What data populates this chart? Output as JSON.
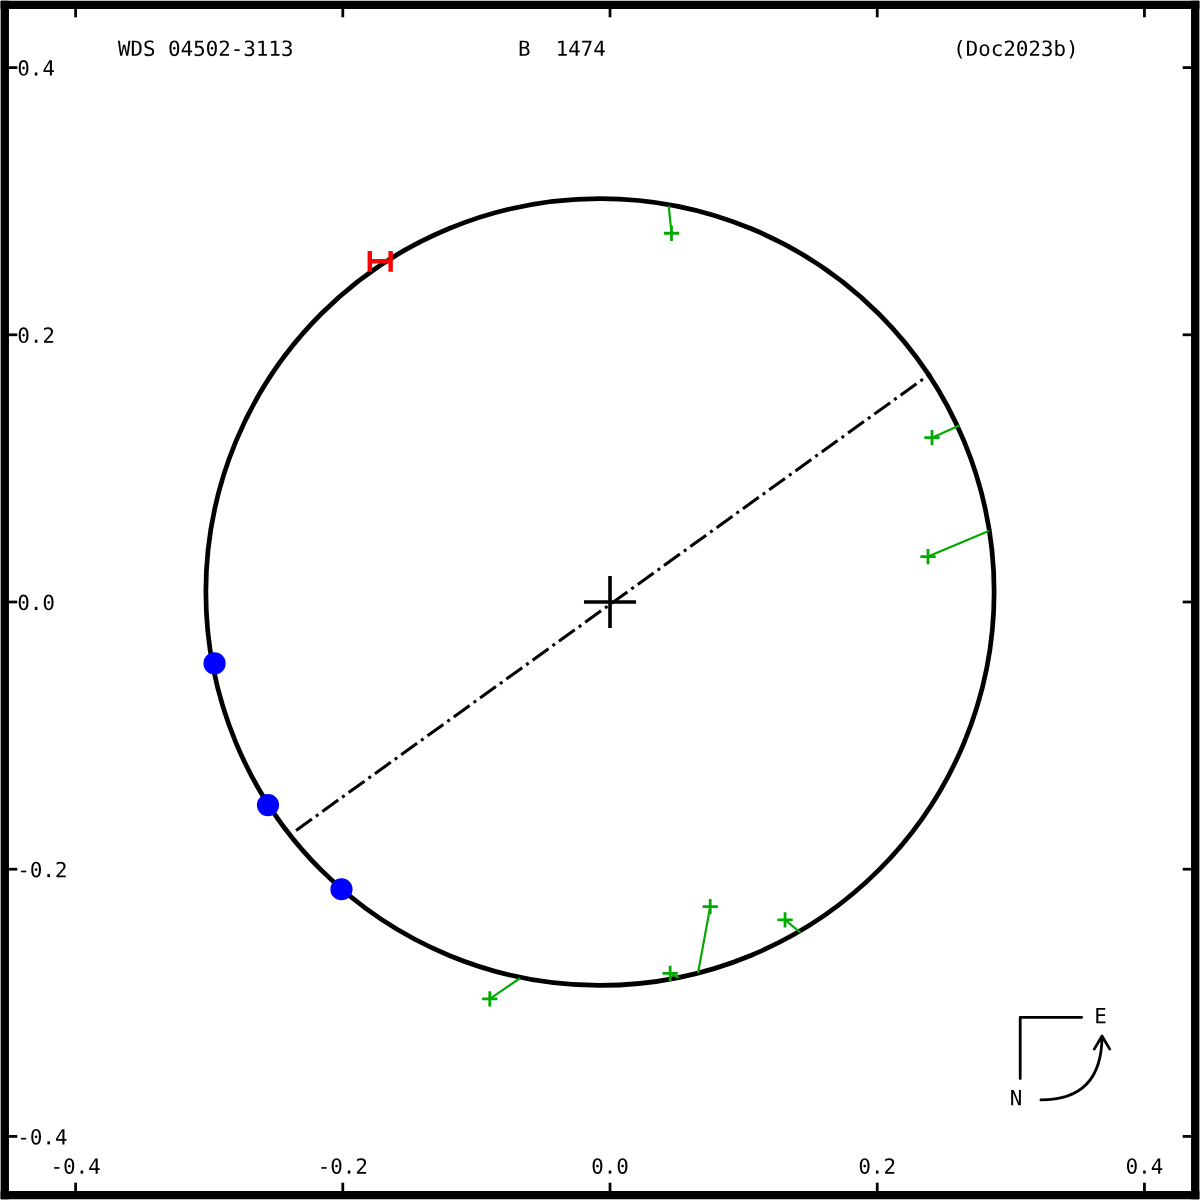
{
  "chart_data": {
    "type": "scatter",
    "title": "WDS 04502-3113",
    "subtitle": "B  1474",
    "annotations": [
      "(Doc2023b)",
      "N",
      "E"
    ],
    "xlim": [
      -0.453,
      0.438
    ],
    "ylim": [
      -0.444,
      0.447
    ],
    "xticks": [
      -0.4,
      -0.2,
      {
        "value": 0,
        "label": "0.0"
      },
      0.2,
      0.4
    ],
    "yticks": [
      -0.4,
      -0.2,
      {
        "value": 0,
        "label": "0.0"
      },
      0.2,
      0.4
    ],
    "series": [
      {
        "type": "line",
        "color": "#000000",
        "line_style": "dashdot",
        "marker": "none",
        "x": [
          -0.235,
          0.24
        ],
        "values": [
          -0.171,
          0.171
        ]
      },
      {
        "type": "line",
        "color": "#00aa00",
        "line_style": "solid",
        "marker": "none",
        "x": [
          0.046,
          0.044,
          null,
          0.241,
          0.261,
          null,
          0.238,
          0.283,
          null,
          -0.09,
          -0.068,
          null,
          0.045,
          0.051,
          null,
          0.075,
          0.066,
          null,
          0.131,
          0.142
        ],
        "values": [
          0.276,
          0.296,
          null,
          0.123,
          0.132,
          null,
          0.034,
          0.053,
          null,
          -0.297,
          -0.282,
          null,
          -0.278,
          -0.281,
          null,
          -0.228,
          -0.277,
          null,
          -0.238,
          -0.247
        ]
      },
      {
        "color": "#00aa00",
        "marker": "cross",
        "x": [
          0.046,
          0.241,
          0.238,
          -0.09,
          0.045,
          0.075,
          0.131
        ],
        "values": [
          0.276,
          0.123,
          0.034,
          -0.297,
          -0.278,
          -0.228,
          -0.238
        ]
      },
      {
        "color": "#0000ff",
        "marker": "circle",
        "x": [
          -0.296,
          -0.256,
          -0.201
        ],
        "values": [
          -0.046,
          -0.152,
          -0.215
        ]
      },
      {
        "color": "#ff0000",
        "x": [
          -0.172
        ],
        "values": [
          0.255
        ]
      }
    ]
  }
}
